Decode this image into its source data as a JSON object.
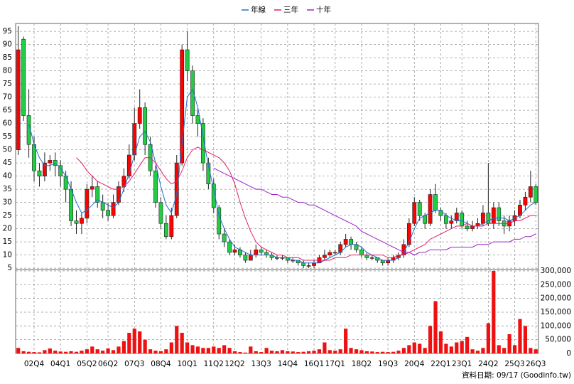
{
  "chart_data": {
    "type": "candlestick",
    "categories": [
      null,
      null,
      null,
      "02Q4",
      null,
      null,
      null,
      null,
      "04Q1",
      null,
      null,
      null,
      null,
      "05Q2",
      null,
      null,
      null,
      "06Q2",
      null,
      null,
      null,
      null,
      "07Q3",
      null,
      null,
      null,
      null,
      "08Q4",
      null,
      null,
      null,
      null,
      "10Q1",
      null,
      null,
      null,
      null,
      "11Q2",
      null,
      null,
      null,
      "12Q2",
      null,
      null,
      null,
      null,
      "13Q3",
      null,
      null,
      null,
      null,
      "14Q4",
      null,
      null,
      null,
      null,
      "16Q1",
      null,
      null,
      null,
      "17Q1",
      null,
      null,
      null,
      null,
      "18Q2",
      null,
      null,
      null,
      null,
      "19Q3",
      null,
      null,
      null,
      null,
      "20Q4",
      null,
      null,
      null,
      null,
      "22Q1",
      null,
      null,
      null,
      "23Q1",
      null,
      null,
      null,
      null,
      "24Q2",
      null,
      null,
      null,
      null,
      "25Q3",
      null,
      null,
      null,
      "26Q3"
    ],
    "ohlc": [
      [
        50,
        97,
        48,
        88
      ],
      [
        92,
        93,
        61,
        63
      ],
      [
        63,
        73,
        47,
        52
      ],
      [
        52,
        55,
        38,
        42
      ],
      [
        42,
        45,
        36,
        40
      ],
      [
        40,
        49,
        38,
        45
      ],
      [
        45,
        48,
        42,
        46
      ],
      [
        46,
        49,
        40,
        44
      ],
      [
        44,
        46,
        36,
        40
      ],
      [
        40,
        42,
        30,
        35
      ],
      [
        35,
        38,
        21,
        23
      ],
      [
        23,
        27,
        18,
        22
      ],
      [
        22,
        26,
        18,
        24
      ],
      [
        24,
        37,
        22,
        35
      ],
      [
        35,
        40,
        32,
        36
      ],
      [
        36,
        38,
        28,
        30
      ],
      [
        30,
        33,
        24,
        27
      ],
      [
        27,
        30,
        23,
        25
      ],
      [
        25,
        33,
        24,
        30
      ],
      [
        30,
        38,
        29,
        36
      ],
      [
        36,
        43,
        34,
        40
      ],
      [
        40,
        52,
        39,
        48
      ],
      [
        48,
        66,
        46,
        60
      ],
      [
        60,
        73,
        58,
        66
      ],
      [
        66,
        68,
        48,
        52
      ],
      [
        52,
        55,
        40,
        42
      ],
      [
        42,
        44,
        28,
        30
      ],
      [
        30,
        32,
        20,
        22
      ],
      [
        22,
        25,
        16,
        17
      ],
      [
        17,
        28,
        16,
        25
      ],
      [
        25,
        48,
        24,
        45
      ],
      [
        45,
        90,
        44,
        88
      ],
      [
        88,
        95,
        76,
        80
      ],
      [
        80,
        82,
        60,
        63
      ],
      [
        63,
        66,
        55,
        60
      ],
      [
        60,
        62,
        42,
        45
      ],
      [
        45,
        47,
        35,
        37
      ],
      [
        37,
        39,
        26,
        28
      ],
      [
        28,
        29,
        16,
        18
      ],
      [
        18,
        20,
        13,
        15
      ],
      [
        15,
        16,
        10,
        11
      ],
      [
        11,
        14,
        10,
        12
      ],
      [
        12,
        13,
        9,
        10
      ],
      [
        10,
        11,
        7,
        8
      ],
      [
        8,
        12,
        8,
        10
      ],
      [
        10,
        14,
        9,
        12
      ],
      [
        12,
        13,
        10,
        11
      ],
      [
        11,
        12,
        9,
        10
      ],
      [
        10,
        11,
        8,
        9
      ],
      [
        9,
        10,
        8,
        9
      ],
      [
        9,
        10,
        8,
        9
      ],
      [
        9,
        9,
        7,
        8
      ],
      [
        8,
        9,
        7,
        8
      ],
      [
        8,
        8,
        6,
        7
      ],
      [
        7,
        8,
        5,
        6
      ],
      [
        6,
        7,
        5,
        6
      ],
      [
        6,
        8,
        5,
        7
      ],
      [
        7,
        10,
        7,
        9
      ],
      [
        9,
        12,
        8,
        10
      ],
      [
        10,
        12,
        9,
        11
      ],
      [
        11,
        12,
        10,
        11
      ],
      [
        11,
        15,
        10,
        14
      ],
      [
        14,
        18,
        13,
        16
      ],
      [
        16,
        17,
        12,
        14
      ],
      [
        14,
        15,
        11,
        12
      ],
      [
        12,
        13,
        9,
        10
      ],
      [
        10,
        11,
        8,
        9
      ],
      [
        9,
        10,
        8,
        9
      ],
      [
        9,
        9,
        7,
        8
      ],
      [
        8,
        8,
        6,
        7
      ],
      [
        7,
        9,
        6,
        8
      ],
      [
        8,
        10,
        7,
        9
      ],
      [
        9,
        11,
        8,
        10
      ],
      [
        10,
        16,
        9,
        14
      ],
      [
        14,
        24,
        13,
        22
      ],
      [
        22,
        32,
        21,
        30
      ],
      [
        30,
        31,
        23,
        25
      ],
      [
        25,
        26,
        20,
        22
      ],
      [
        22,
        35,
        21,
        33
      ],
      [
        33,
        37,
        26,
        27
      ],
      [
        27,
        28,
        23,
        25
      ],
      [
        25,
        26,
        20,
        22
      ],
      [
        22,
        25,
        20,
        23
      ],
      [
        23,
        28,
        22,
        26
      ],
      [
        26,
        27,
        20,
        21
      ],
      [
        21,
        23,
        19,
        20
      ],
      [
        20,
        23,
        19,
        21
      ],
      [
        21,
        24,
        20,
        22
      ],
      [
        22,
        29,
        21,
        26
      ],
      [
        26,
        45,
        21,
        22
      ],
      [
        22,
        30,
        20,
        28
      ],
      [
        28,
        30,
        21,
        23
      ],
      [
        23,
        25,
        18,
        21
      ],
      [
        21,
        25,
        19,
        23
      ],
      [
        23,
        27,
        21,
        25
      ],
      [
        25,
        31,
        24,
        29
      ],
      [
        29,
        34,
        27,
        32
      ],
      [
        32,
        42,
        30,
        36
      ],
      [
        36,
        37,
        29,
        30
      ]
    ],
    "up_color": "#ff0000",
    "down_color": "#22cc44",
    "lines": [
      {
        "name": "年線",
        "color": "#1f6fd0",
        "values": [
          null,
          null,
          60,
          52,
          47,
          44,
          44,
          45,
          43,
          40,
          35,
          30,
          26,
          27,
          29,
          31,
          30,
          29,
          28,
          30,
          35,
          41,
          48,
          55,
          57,
          53,
          45,
          36,
          29,
          26,
          33,
          52,
          70,
          73,
          66,
          55,
          44,
          35,
          25,
          20,
          16,
          13,
          12,
          11,
          10,
          10,
          10,
          10,
          10,
          9,
          9,
          9,
          8,
          8,
          7,
          7,
          7,
          7,
          8,
          9,
          10,
          11,
          13,
          14,
          14,
          13,
          11,
          10,
          9,
          8,
          8,
          8,
          9,
          11,
          15,
          20,
          24,
          25,
          26,
          27,
          27,
          25,
          24,
          23,
          23,
          22,
          21,
          21,
          22,
          23,
          24,
          24,
          24,
          23,
          24,
          25,
          27,
          29,
          30
        ]
      },
      {
        "name": "三年",
        "color": "#e0206a",
        "values": [
          null,
          null,
          null,
          null,
          null,
          null,
          null,
          null,
          null,
          null,
          null,
          47,
          45,
          42,
          40,
          38,
          37,
          36,
          35,
          35,
          36,
          38,
          41,
          44,
          47,
          47,
          45,
          42,
          39,
          37,
          38,
          42,
          47,
          50,
          51,
          50,
          49,
          48,
          47,
          45,
          42,
          37,
          30,
          24,
          19,
          15,
          13,
          12,
          11,
          10,
          10,
          9,
          9,
          9,
          8,
          8,
          8,
          8,
          8,
          8,
          9,
          9,
          9,
          10,
          10,
          10,
          10,
          10,
          10,
          10,
          9,
          9,
          10,
          10,
          11,
          12,
          13,
          14,
          16,
          17,
          18,
          19,
          20,
          21,
          21,
          22,
          21,
          21,
          21,
          22,
          22,
          22,
          22,
          22,
          23,
          23,
          24,
          25,
          25
        ]
      },
      {
        "name": "十年",
        "color": "#9a22c8",
        "values": [
          null,
          null,
          null,
          null,
          null,
          null,
          null,
          null,
          null,
          null,
          null,
          null,
          null,
          null,
          null,
          null,
          null,
          null,
          null,
          null,
          null,
          null,
          null,
          null,
          null,
          null,
          null,
          null,
          null,
          null,
          null,
          null,
          null,
          null,
          null,
          null,
          null,
          43,
          42,
          41,
          40,
          39,
          38,
          37,
          36,
          35,
          35,
          34,
          33,
          33,
          32,
          32,
          31,
          30,
          30,
          29,
          29,
          28,
          27,
          26,
          25,
          24,
          23,
          22,
          21,
          19,
          18,
          17,
          16,
          15,
          14,
          13,
          12,
          11,
          11,
          10,
          11,
          11,
          12,
          12,
          12,
          12,
          13,
          13,
          13,
          13,
          13,
          14,
          14,
          14,
          15,
          15,
          15,
          15,
          16,
          16,
          17,
          17,
          18
        ]
      }
    ],
    "ylim": [
      4.5,
      98
    ],
    "yticks": [
      5,
      10,
      15,
      20,
      25,
      30,
      35,
      40,
      45,
      50,
      55,
      60,
      65,
      70,
      75,
      80,
      85,
      90,
      95
    ],
    "volume": {
      "color": "#ee1111",
      "values": [
        20000,
        8000,
        6000,
        5000,
        4000,
        12000,
        18000,
        10000,
        7000,
        6000,
        8000,
        6000,
        10000,
        15000,
        25000,
        15000,
        10000,
        18000,
        12000,
        25000,
        45000,
        75000,
        90000,
        80000,
        50000,
        15000,
        10000,
        8000,
        15000,
        40000,
        100000,
        75000,
        40000,
        30000,
        25000,
        20000,
        20000,
        25000,
        20000,
        30000,
        20000,
        8000,
        5000,
        3000,
        25000,
        8000,
        5000,
        20000,
        10000,
        8000,
        12000,
        8000,
        7000,
        5000,
        6000,
        8000,
        10000,
        15000,
        40000,
        12000,
        10000,
        15000,
        90000,
        20000,
        15000,
        12000,
        8000,
        7000,
        5000,
        6000,
        5000,
        6000,
        10000,
        20000,
        30000,
        40000,
        35000,
        20000,
        100000,
        190000,
        80000,
        35000,
        25000,
        40000,
        45000,
        60000,
        15000,
        10000,
        20000,
        110000,
        300000,
        30000,
        20000,
        70000,
        30000,
        125000,
        100000,
        20000,
        15000
      ],
      "ylim": [
        0,
        305000
      ],
      "yticks": [
        0,
        {
          "value": 50000,
          "label": "50,000"
        },
        {
          "value": 100000,
          "label": "100,000"
        },
        {
          "value": 150000,
          "label": "150,000"
        },
        {
          "value": 200000,
          "label": "200,000"
        },
        {
          "value": 250000,
          "label": "250,000"
        },
        {
          "value": 300000,
          "label": "300,000"
        }
      ]
    },
    "grid": true,
    "footer": "資料日期: 09/17 (Goodinfo.tw)"
  }
}
